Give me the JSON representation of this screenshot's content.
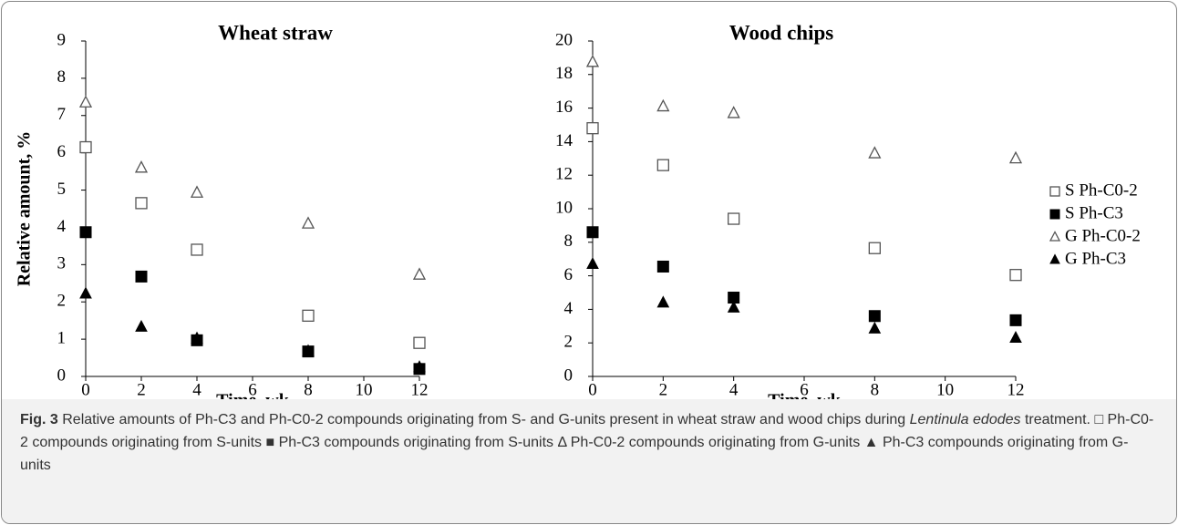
{
  "chart_data": [
    {
      "type": "scatter",
      "title": "Wheat straw",
      "xlabel": "Time, wk",
      "ylabel": "Relative amount, %",
      "xlim": [
        0,
        12
      ],
      "xticks": [
        0,
        2,
        4,
        6,
        8,
        10,
        12
      ],
      "ylim": [
        0,
        9
      ],
      "yticks": [
        0,
        1,
        2,
        3,
        4,
        5,
        6,
        7,
        8,
        9
      ],
      "series": [
        {
          "marker": "square-open",
          "color": "#555555",
          "x": [
            0,
            2,
            4,
            8,
            12
          ],
          "values": [
            6.15,
            4.65,
            3.4,
            1.63,
            0.9
          ]
        },
        {
          "marker": "square-filled",
          "color": "#000000",
          "x": [
            0,
            2,
            4,
            8,
            12
          ],
          "values": [
            3.87,
            2.68,
            0.97,
            0.67,
            0.2
          ]
        },
        {
          "marker": "triangle-open",
          "color": "#555555",
          "x": [
            0,
            2,
            4,
            8,
            12
          ],
          "values": [
            7.35,
            5.6,
            4.93,
            4.1,
            2.73
          ]
        },
        {
          "marker": "triangle-filled",
          "color": "#000000",
          "x": [
            0,
            2,
            4,
            8,
            12
          ],
          "values": [
            2.22,
            1.33,
            1.02,
            0.68,
            0.25
          ]
        }
      ]
    },
    {
      "type": "scatter",
      "title": "Wood chips",
      "xlabel": "Time, wk",
      "legend": "right",
      "xlim": [
        0,
        12
      ],
      "xticks": [
        0,
        2,
        4,
        6,
        8,
        10,
        12
      ],
      "ylim": [
        0,
        20
      ],
      "yticks": [
        0,
        2,
        4,
        6,
        8,
        10,
        12,
        14,
        16,
        18,
        20
      ],
      "series": [
        {
          "name": "S Ph-C0-2",
          "marker": "square-open",
          "color": "#555555",
          "x": [
            0,
            2,
            4,
            8,
            12
          ],
          "values": [
            14.8,
            12.6,
            9.4,
            7.65,
            6.05
          ]
        },
        {
          "name": "S Ph-C3",
          "marker": "square-filled",
          "color": "#000000",
          "x": [
            0,
            2,
            4,
            8,
            12
          ],
          "values": [
            8.6,
            6.55,
            4.7,
            3.6,
            3.35
          ]
        },
        {
          "name": "G Ph-C0-2",
          "marker": "triangle-open",
          "color": "#555555",
          "x": [
            0,
            2,
            4,
            8,
            12
          ],
          "values": [
            18.75,
            16.1,
            15.7,
            13.3,
            13.0
          ]
        },
        {
          "name": "G Ph-C3",
          "marker": "triangle-filled",
          "color": "#000000",
          "x": [
            0,
            2,
            4,
            8,
            12
          ],
          "values": [
            6.7,
            4.4,
            4.1,
            2.85,
            2.3
          ]
        }
      ]
    }
  ],
  "caption": {
    "label": "Fig. 3",
    "text_1": "Relative amounts of Ph-C3 and Ph-C0-2 compounds originating from S- and G-units present in wheat straw and wood chips during",
    "species": "Lentinula edodes",
    "text_2": "treatment. □ Ph-C0-2 compounds originating from S-units ■ Ph-C3 compounds originating from S-units Δ Ph-C0-2 compounds originating from G-units ▲ Ph-C3 compounds originating from G-units"
  }
}
